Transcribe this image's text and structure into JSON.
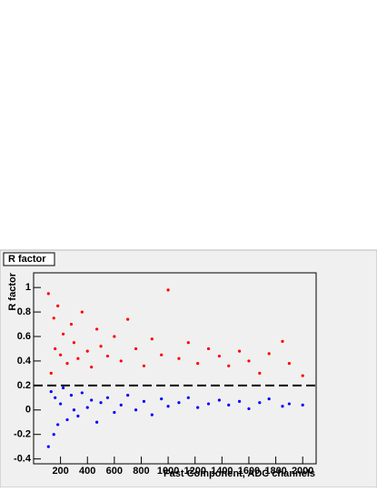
{
  "chart_data": {
    "type": "scatter",
    "title": "R factor",
    "x_label": "Fast Component, ADC channels",
    "y_label": "R factor",
    "xlim": [
      0,
      2100
    ],
    "ylim": [
      -0.44,
      1.12
    ],
    "xticks": [
      200,
      400,
      600,
      800,
      1000,
      1200,
      1400,
      1600,
      1800,
      2000
    ],
    "yticks": [
      -0.4,
      -0.2,
      0,
      0.2,
      0.4,
      0.6,
      0.8,
      1
    ],
    "cut_value": 0.2,
    "series": [
      {
        "color": "#ff0000",
        "x": [
          110,
          130,
          150,
          160,
          180,
          200,
          220,
          250,
          280,
          300,
          330,
          360,
          400,
          430,
          470,
          500,
          550,
          600,
          650,
          700,
          760,
          820,
          880,
          950,
          1000,
          1080,
          1150,
          1220,
          1300,
          1380,
          1450,
          1530,
          1600,
          1680,
          1750,
          1850,
          1900,
          2000
        ],
        "values": [
          0.95,
          0.3,
          0.75,
          0.5,
          0.85,
          0.45,
          0.62,
          0.38,
          0.7,
          0.55,
          0.42,
          0.8,
          0.48,
          0.35,
          0.66,
          0.52,
          0.44,
          0.6,
          0.4,
          0.74,
          0.5,
          0.36,
          0.58,
          0.45,
          0.98,
          0.42,
          0.55,
          0.38,
          0.5,
          0.44,
          0.36,
          0.48,
          0.4,
          0.3,
          0.46,
          0.56,
          0.38,
          0.28
        ]
      },
      {
        "color": "#0000ff",
        "x": [
          110,
          130,
          150,
          160,
          180,
          200,
          220,
          250,
          280,
          300,
          330,
          360,
          400,
          430,
          470,
          500,
          550,
          600,
          650,
          700,
          760,
          820,
          880,
          950,
          1000,
          1080,
          1150,
          1220,
          1300,
          1380,
          1450,
          1530,
          1600,
          1680,
          1750,
          1850,
          1900,
          2000
        ],
        "values": [
          -0.3,
          0.15,
          -0.2,
          0.1,
          -0.12,
          0.05,
          0.18,
          -0.08,
          0.12,
          0.0,
          -0.05,
          0.14,
          0.02,
          0.08,
          -0.1,
          0.06,
          0.1,
          -0.02,
          0.04,
          0.12,
          0.0,
          0.07,
          -0.04,
          0.09,
          0.03,
          0.06,
          0.1,
          0.02,
          0.05,
          0.08,
          0.04,
          0.07,
          0.01,
          0.06,
          0.09,
          0.03,
          0.05,
          0.04
        ]
      }
    ]
  }
}
